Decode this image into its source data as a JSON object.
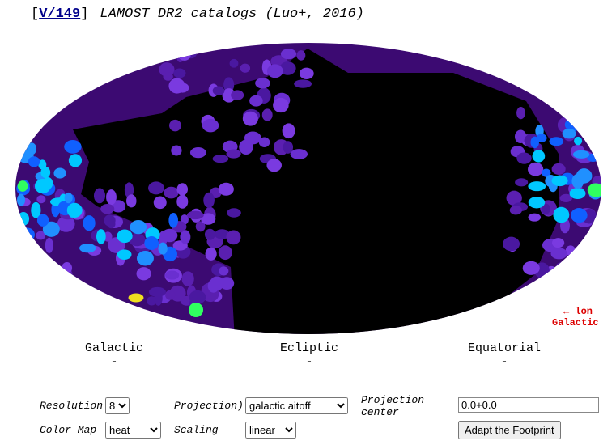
{
  "header": {
    "bracket_open": "[",
    "catalog_link": "V/149",
    "bracket_close": "]",
    "title": "LAMOST DR2 catalogs (Luo+, 2016)"
  },
  "map": {
    "arrow_label": "← lon",
    "frame_label": "Galactic"
  },
  "coordinates": [
    {
      "label": "Galactic",
      "value": "-"
    },
    {
      "label": "Ecliptic",
      "value": "-"
    },
    {
      "label": "Equatorial",
      "value": "-"
    }
  ],
  "controls": {
    "resolution": {
      "label": "Resolution",
      "value": "8"
    },
    "projection": {
      "label": "Projection)",
      "value": "galactic aitoff"
    },
    "projection_center": {
      "label": "Projection center",
      "value": "0.0+0.0"
    },
    "color_map": {
      "label": "Color Map",
      "value": "heat"
    },
    "scaling": {
      "label": "Scaling",
      "value": "linear"
    },
    "button": "Adapt the Footprint"
  }
}
